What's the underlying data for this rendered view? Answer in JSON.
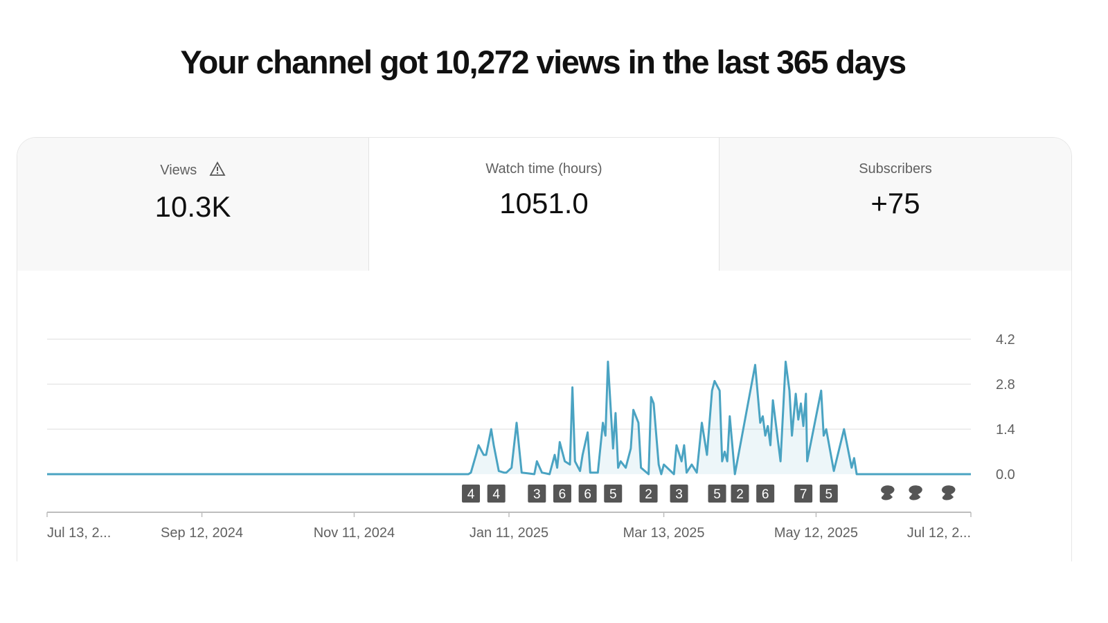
{
  "headline": "Your channel got 10,272 views in the last 365 days",
  "tabs": [
    {
      "label": "Views",
      "value": "10.3K",
      "icon": "warning-icon",
      "active": false
    },
    {
      "label": "Watch time (hours)",
      "value": "1051.0",
      "active": true
    },
    {
      "label": "Subscribers",
      "value": "+75",
      "active": false
    }
  ],
  "colors": {
    "line": "#4aa3c2",
    "line_dark": "#3d8fb0",
    "marker": "#555555",
    "grid": "#e8e8e8"
  },
  "chart_data": {
    "type": "line",
    "title": "Watch time (hours)",
    "x_days_total": 364,
    "ylim": [
      0,
      4.2
    ],
    "y_ticks": [
      "0.0",
      "1.4",
      "2.8",
      "4.2"
    ],
    "y_tick_values": [
      0,
      1.4,
      2.8,
      4.2
    ],
    "x_ticks": [
      {
        "day": 0,
        "label": "Jul 13, 2..."
      },
      {
        "day": 61,
        "label": "Sep 12, 2024"
      },
      {
        "day": 121,
        "label": "Nov 11, 2024"
      },
      {
        "day": 182,
        "label": "Jan 11, 2025"
      },
      {
        "day": 243,
        "label": "Mar 13, 2025"
      },
      {
        "day": 303,
        "label": "May 12, 2025"
      },
      {
        "day": 364,
        "label": "Jul 12, 2..."
      }
    ],
    "points": [
      [
        0,
        0
      ],
      [
        166,
        0
      ],
      [
        167,
        0.05
      ],
      [
        169,
        0.6
      ],
      [
        170,
        0.9
      ],
      [
        172,
        0.6
      ],
      [
        173,
        0.6
      ],
      [
        175,
        1.4
      ],
      [
        176,
        0.9
      ],
      [
        178,
        0.1
      ],
      [
        180,
        0.05
      ],
      [
        181,
        0.05
      ],
      [
        183,
        0.2
      ],
      [
        185,
        1.6
      ],
      [
        187,
        0.05
      ],
      [
        192,
        0
      ],
      [
        193,
        0.4
      ],
      [
        195,
        0.05
      ],
      [
        198,
        0
      ],
      [
        200,
        0.6
      ],
      [
        201,
        0.2
      ],
      [
        202,
        1.0
      ],
      [
        204,
        0.4
      ],
      [
        206,
        0.3
      ],
      [
        207,
        2.7
      ],
      [
        208,
        0.4
      ],
      [
        210,
        0.1
      ],
      [
        211,
        0.6
      ],
      [
        213,
        1.3
      ],
      [
        214,
        0.05
      ],
      [
        217,
        0.05
      ],
      [
        219,
        1.6
      ],
      [
        220,
        1.2
      ],
      [
        221,
        3.5
      ],
      [
        223,
        0.8
      ],
      [
        224,
        1.9
      ],
      [
        225,
        0.2
      ],
      [
        226,
        0.4
      ],
      [
        228,
        0.2
      ],
      [
        230,
        0.8
      ],
      [
        231,
        2.0
      ],
      [
        233,
        1.6
      ],
      [
        234,
        0.2
      ],
      [
        237,
        0
      ],
      [
        238,
        2.4
      ],
      [
        239,
        2.2
      ],
      [
        241,
        0.3
      ],
      [
        242,
        0
      ],
      [
        243,
        0.3
      ],
      [
        247,
        0
      ],
      [
        248,
        0.9
      ],
      [
        250,
        0.4
      ],
      [
        251,
        0.9
      ],
      [
        252,
        0.05
      ],
      [
        254,
        0.3
      ],
      [
        256,
        0.05
      ],
      [
        258,
        1.6
      ],
      [
        260,
        0.6
      ],
      [
        262,
        2.6
      ],
      [
        263,
        2.9
      ],
      [
        265,
        2.6
      ],
      [
        266,
        0.4
      ],
      [
        267,
        0.7
      ],
      [
        268,
        0.4
      ],
      [
        269,
        1.8
      ],
      [
        271,
        0
      ],
      [
        279,
        3.4
      ],
      [
        281,
        1.6
      ],
      [
        282,
        1.8
      ],
      [
        283,
        1.2
      ],
      [
        284,
        1.5
      ],
      [
        285,
        0.9
      ],
      [
        286,
        2.3
      ],
      [
        289,
        0.4
      ],
      [
        291,
        3.5
      ],
      [
        292.5,
        2.6
      ],
      [
        293.5,
        1.2
      ],
      [
        295,
        2.5
      ],
      [
        296,
        1.7
      ],
      [
        297,
        2.2
      ],
      [
        298,
        1.5
      ],
      [
        299,
        2.5
      ],
      [
        299.5,
        0.4
      ],
      [
        305,
        2.6
      ],
      [
        306,
        1.2
      ],
      [
        307,
        1.4
      ],
      [
        310,
        0.1
      ],
      [
        314,
        1.4
      ],
      [
        317,
        0.2
      ],
      [
        318,
        0.5
      ],
      [
        319,
        0
      ],
      [
        364,
        0
      ]
    ],
    "markers": [
      {
        "day": 167,
        "label": "4"
      },
      {
        "day": 177,
        "label": "4"
      },
      {
        "day": 193,
        "label": "3"
      },
      {
        "day": 203,
        "label": "6"
      },
      {
        "day": 213,
        "label": "6"
      },
      {
        "day": 223,
        "label": "5"
      },
      {
        "day": 237,
        "label": "2"
      },
      {
        "day": 249,
        "label": "3"
      },
      {
        "day": 264,
        "label": "5"
      },
      {
        "day": 273,
        "label": "2"
      },
      {
        "day": 283,
        "label": "6"
      },
      {
        "day": 298,
        "label": "7"
      },
      {
        "day": 308,
        "label": "5"
      }
    ],
    "shorts_markers": [
      {
        "day": 331
      },
      {
        "day": 342
      },
      {
        "day": 355
      }
    ]
  }
}
